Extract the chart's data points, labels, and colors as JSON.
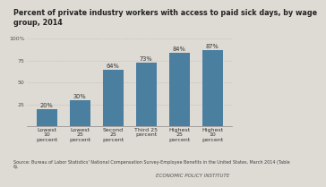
{
  "title": "Percent of private industry workers with access to paid sick days, by wage\ngroup, 2014",
  "categories": [
    "Lowest\n10\npercent",
    "Lowest\n25\npercent",
    "Second\n25\npercent",
    "Third 25\npercent",
    "Highest\n25\npercent",
    "Highest\n10\npercent"
  ],
  "values": [
    20,
    30,
    64,
    73,
    84,
    87
  ],
  "bar_color": "#4a7fa0",
  "background_color": "#dedad4",
  "plot_bg_color": "#dedad4",
  "ylim": [
    0,
    100
  ],
  "yticks": [
    0,
    25,
    50,
    75,
    100
  ],
  "ytick_labels": [
    "",
    "25",
    "50",
    "75",
    "100%"
  ],
  "source_text": "Source: Bureau of Labor Statistics' National Compensation Survey-Employee Benefits in the United States, March 2014 (Table\n6).",
  "footer_text": "ECONOMIC POLICY INSTITUTE",
  "title_fontsize": 5.8,
  "label_fontsize": 4.8,
  "tick_fontsize": 4.5,
  "source_fontsize": 3.5,
  "footer_fontsize": 4.0
}
